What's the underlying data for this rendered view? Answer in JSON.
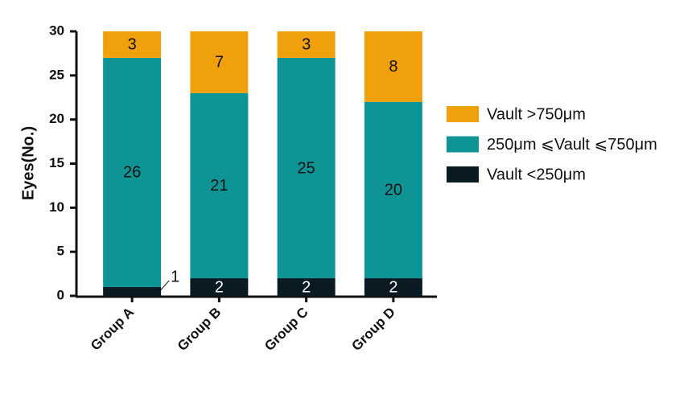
{
  "chart_data": {
    "type": "stacked-bar",
    "y_label": "Eyes(No.)",
    "categories": [
      "Group A",
      "Group B",
      "Group C",
      "Group D"
    ],
    "series": [
      {
        "name": "Vault <250μm",
        "color": "#0a1a22",
        "values": [
          1,
          2,
          2,
          2
        ]
      },
      {
        "name": "250μm ⩽Vault ⩽750μm",
        "color": "#0e9494",
        "values": [
          26,
          21,
          25,
          20
        ]
      },
      {
        "name": "Vault >750μm",
        "color": "#f0a00a",
        "values": [
          3,
          7,
          3,
          8
        ]
      }
    ],
    "ylim": [
      0,
      30
    ],
    "yticks": [
      0,
      5,
      10,
      15,
      20,
      25,
      30
    ]
  }
}
